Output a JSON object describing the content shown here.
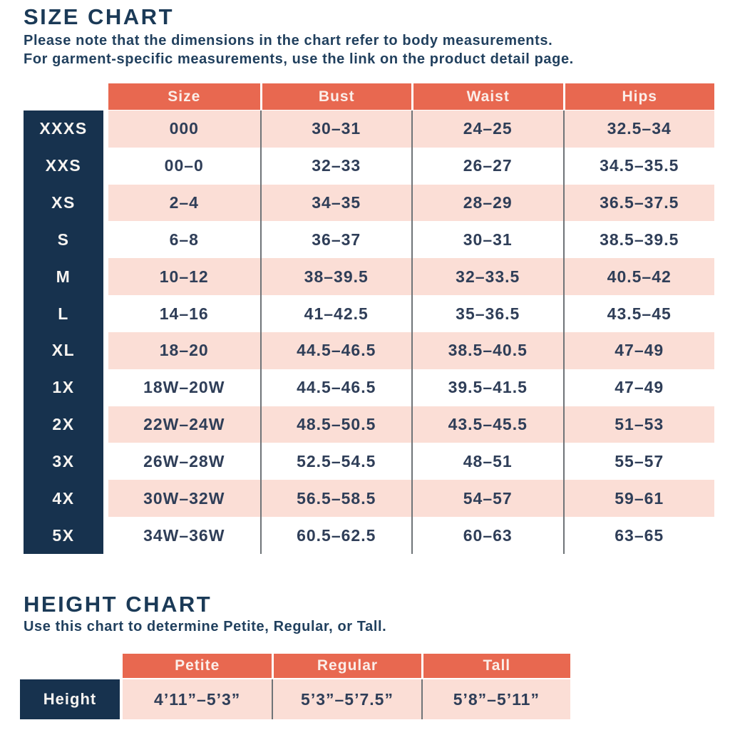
{
  "size_chart": {
    "title": "SIZE CHART",
    "subtitle_line1": "Please note that the dimensions in the chart refer to body measurements.",
    "subtitle_line2": "For garment-specific measurements, use the link on the product detail page.",
    "columns": [
      "Size",
      "Bust",
      "Waist",
      "Hips"
    ],
    "rows": [
      {
        "label": "XXXS",
        "size": "000",
        "bust": "30–31",
        "waist": "24–25",
        "hips": "32.5–34"
      },
      {
        "label": "XXS",
        "size": "00–0",
        "bust": "32–33",
        "waist": "26–27",
        "hips": "34.5–35.5"
      },
      {
        "label": "XS",
        "size": "2–4",
        "bust": "34–35",
        "waist": "28–29",
        "hips": "36.5–37.5"
      },
      {
        "label": "S",
        "size": "6–8",
        "bust": "36–37",
        "waist": "30–31",
        "hips": "38.5–39.5"
      },
      {
        "label": "M",
        "size": "10–12",
        "bust": "38–39.5",
        "waist": "32–33.5",
        "hips": "40.5–42"
      },
      {
        "label": "L",
        "size": "14–16",
        "bust": "41–42.5",
        "waist": "35–36.5",
        "hips": "43.5–45"
      },
      {
        "label": "XL",
        "size": "18–20",
        "bust": "44.5–46.5",
        "waist": "38.5–40.5",
        "hips": "47–49"
      },
      {
        "label": "1X",
        "size": "18W–20W",
        "bust": "44.5–46.5",
        "waist": "39.5–41.5",
        "hips": "47–49"
      },
      {
        "label": "2X",
        "size": "22W–24W",
        "bust": "48.5–50.5",
        "waist": "43.5–45.5",
        "hips": "51–53"
      },
      {
        "label": "3X",
        "size": "26W–28W",
        "bust": "52.5–54.5",
        "waist": "48–51",
        "hips": "55–57"
      },
      {
        "label": "4X",
        "size": "30W–32W",
        "bust": "56.5–58.5",
        "waist": "54–57",
        "hips": "59–61"
      },
      {
        "label": "5X",
        "size": "34W–36W",
        "bust": "60.5–62.5",
        "waist": "60–63",
        "hips": "63–65"
      }
    ]
  },
  "height_chart": {
    "title": "HEIGHT CHART",
    "subtitle": "Use this chart to determine Petite, Regular, or Tall.",
    "columns": [
      "Petite",
      "Regular",
      "Tall"
    ],
    "row_label": "Height",
    "values": [
      "4’11”–5’3”",
      "5’3”–5’7.5”",
      "5’8”–5’11”"
    ]
  },
  "colors": {
    "header_orange": "#e86850",
    "stripe_pink": "#fbded6",
    "label_navy": "#17324e",
    "text_navy": "#2f3e58",
    "title_navy": "#1b3a57",
    "separator_gray": "#6f7478"
  },
  "chart_data": [
    {
      "type": "table",
      "title": "SIZE CHART",
      "columns": [
        "",
        "Size",
        "Bust",
        "Waist",
        "Hips"
      ],
      "rows": [
        [
          "XXXS",
          "000",
          "30–31",
          "24–25",
          "32.5–34"
        ],
        [
          "XXS",
          "00–0",
          "32–33",
          "26–27",
          "34.5–35.5"
        ],
        [
          "XS",
          "2–4",
          "34–35",
          "28–29",
          "36.5–37.5"
        ],
        [
          "S",
          "6–8",
          "36–37",
          "30–31",
          "38.5–39.5"
        ],
        [
          "M",
          "10–12",
          "38–39.5",
          "32–33.5",
          "40.5–42"
        ],
        [
          "L",
          "14–16",
          "41–42.5",
          "35–36.5",
          "43.5–45"
        ],
        [
          "XL",
          "18–20",
          "44.5–46.5",
          "38.5–40.5",
          "47–49"
        ],
        [
          "1X",
          "18W–20W",
          "44.5–46.5",
          "39.5–41.5",
          "47–49"
        ],
        [
          "2X",
          "22W–24W",
          "48.5–50.5",
          "43.5–45.5",
          "51–53"
        ],
        [
          "3X",
          "26W–28W",
          "52.5–54.5",
          "48–51",
          "55–57"
        ],
        [
          "4X",
          "30W–32W",
          "56.5–58.5",
          "54–57",
          "59–61"
        ],
        [
          "5X",
          "34W–36W",
          "60.5–62.5",
          "60–63",
          "63–65"
        ]
      ]
    },
    {
      "type": "table",
      "title": "HEIGHT CHART",
      "columns": [
        "",
        "Petite",
        "Regular",
        "Tall"
      ],
      "rows": [
        [
          "Height",
          "4’11”–5’3”",
          "5’3”–5’7.5”",
          "5’8”–5’11”"
        ]
      ]
    }
  ]
}
